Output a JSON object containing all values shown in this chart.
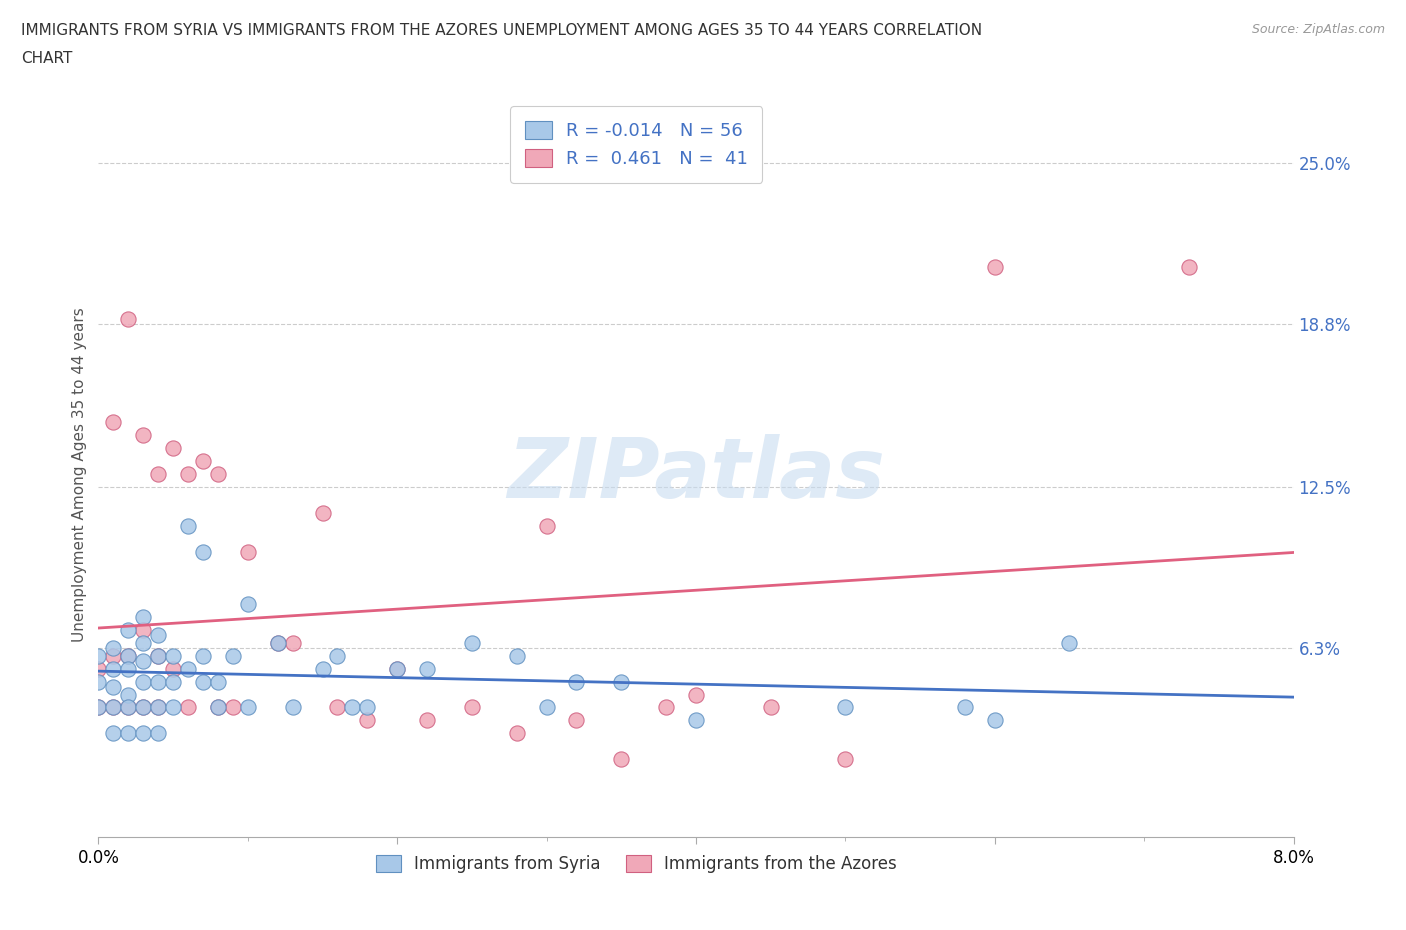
{
  "title_line1": "IMMIGRANTS FROM SYRIA VS IMMIGRANTS FROM THE AZORES UNEMPLOYMENT AMONG AGES 35 TO 44 YEARS CORRELATION",
  "title_line2": "CHART",
  "source": "Source: ZipAtlas.com",
  "ylabel": "Unemployment Among Ages 35 to 44 years",
  "watermark": "ZIPatlas",
  "xlim": [
    0.0,
    0.08
  ],
  "ylim": [
    -0.01,
    0.27
  ],
  "ytick_labels": [
    "6.3%",
    "12.5%",
    "18.8%",
    "25.0%"
  ],
  "ytick_positions": [
    0.063,
    0.125,
    0.188,
    0.25
  ],
  "hline_positions": [
    0.063,
    0.125,
    0.188,
    0.25
  ],
  "legend_syria": "Immigrants from Syria",
  "legend_azores": "Immigrants from the Azores",
  "R_syria": -0.014,
  "N_syria": 56,
  "R_azores": 0.461,
  "N_azores": 41,
  "color_syria": "#A8C8E8",
  "color_azores": "#F0A8B8",
  "edge_color_syria": "#6090C0",
  "edge_color_azores": "#D06080",
  "line_color_syria": "#4472C4",
  "line_color_azores": "#E06080",
  "syria_x": [
    0.0,
    0.0,
    0.0,
    0.001,
    0.001,
    0.001,
    0.001,
    0.001,
    0.002,
    0.002,
    0.002,
    0.002,
    0.002,
    0.002,
    0.003,
    0.003,
    0.003,
    0.003,
    0.003,
    0.003,
    0.004,
    0.004,
    0.004,
    0.004,
    0.004,
    0.005,
    0.005,
    0.005,
    0.006,
    0.006,
    0.007,
    0.007,
    0.007,
    0.008,
    0.008,
    0.009,
    0.01,
    0.01,
    0.012,
    0.013,
    0.015,
    0.016,
    0.017,
    0.018,
    0.02,
    0.022,
    0.025,
    0.028,
    0.03,
    0.032,
    0.035,
    0.04,
    0.05,
    0.058,
    0.06,
    0.065
  ],
  "syria_y": [
    0.06,
    0.05,
    0.04,
    0.063,
    0.055,
    0.048,
    0.04,
    0.03,
    0.07,
    0.06,
    0.055,
    0.045,
    0.04,
    0.03,
    0.075,
    0.065,
    0.058,
    0.05,
    0.04,
    0.03,
    0.068,
    0.06,
    0.05,
    0.04,
    0.03,
    0.06,
    0.05,
    0.04,
    0.11,
    0.055,
    0.1,
    0.06,
    0.05,
    0.05,
    0.04,
    0.06,
    0.08,
    0.04,
    0.065,
    0.04,
    0.055,
    0.06,
    0.04,
    0.04,
    0.055,
    0.055,
    0.065,
    0.06,
    0.04,
    0.05,
    0.05,
    0.035,
    0.04,
    0.04,
    0.035,
    0.065
  ],
  "azores_x": [
    0.0,
    0.0,
    0.001,
    0.001,
    0.001,
    0.002,
    0.002,
    0.002,
    0.003,
    0.003,
    0.003,
    0.004,
    0.004,
    0.004,
    0.005,
    0.005,
    0.006,
    0.006,
    0.007,
    0.008,
    0.008,
    0.009,
    0.01,
    0.012,
    0.013,
    0.015,
    0.016,
    0.018,
    0.02,
    0.022,
    0.025,
    0.028,
    0.03,
    0.032,
    0.035,
    0.038,
    0.04,
    0.045,
    0.05,
    0.06,
    0.073
  ],
  "azores_y": [
    0.055,
    0.04,
    0.15,
    0.06,
    0.04,
    0.19,
    0.06,
    0.04,
    0.145,
    0.07,
    0.04,
    0.13,
    0.06,
    0.04,
    0.14,
    0.055,
    0.13,
    0.04,
    0.135,
    0.13,
    0.04,
    0.04,
    0.1,
    0.065,
    0.065,
    0.115,
    0.04,
    0.035,
    0.055,
    0.035,
    0.04,
    0.03,
    0.11,
    0.035,
    0.02,
    0.04,
    0.045,
    0.04,
    0.02,
    0.21,
    0.21
  ]
}
